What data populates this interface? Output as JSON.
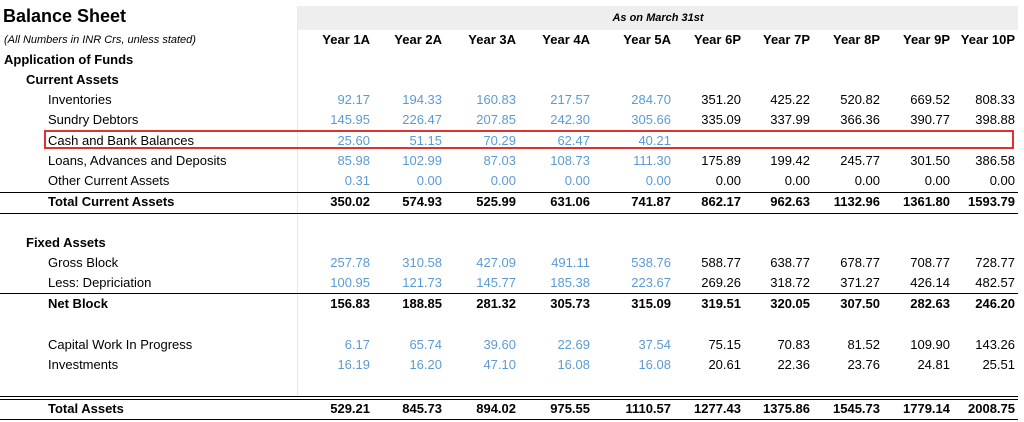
{
  "title": "Balance Sheet",
  "subtitle": "(All Numbers in INR Crs, unless stated)",
  "as_on": "As on March 31st",
  "years": [
    "Year 1A",
    "Year 2A",
    "Year 3A",
    "Year 4A",
    "Year 5A",
    "Year 6P",
    "Year 7P",
    "Year 8P",
    "Year 9P",
    "Year 10P"
  ],
  "section_application": "Application of Funds",
  "section_current_assets": "Current Assets",
  "section_fixed_assets": "Fixed Assets",
  "rows": {
    "inventories": {
      "label": "Inventories",
      "values": [
        "92.17",
        "194.33",
        "160.83",
        "217.57",
        "284.70",
        "351.20",
        "425.22",
        "520.82",
        "669.52",
        "808.33"
      ]
    },
    "sundry_debtors": {
      "label": "Sundry Debtors",
      "values": [
        "145.95",
        "226.47",
        "207.85",
        "242.30",
        "305.66",
        "335.09",
        "337.99",
        "366.36",
        "390.77",
        "398.88"
      ]
    },
    "cash_bank": {
      "label": "Cash and Bank Balances",
      "values": [
        "25.60",
        "51.15",
        "70.29",
        "62.47",
        "40.21",
        "",
        "",
        "",
        "",
        ""
      ]
    },
    "loans": {
      "label": "Loans, Advances and Deposits",
      "values": [
        "85.98",
        "102.99",
        "87.03",
        "108.73",
        "111.30",
        "175.89",
        "199.42",
        "245.77",
        "301.50",
        "386.58"
      ]
    },
    "other_current": {
      "label": "Other Current Assets",
      "values": [
        "0.31",
        "0.00",
        "0.00",
        "0.00",
        "0.00",
        "0.00",
        "0.00",
        "0.00",
        "0.00",
        "0.00"
      ]
    },
    "total_current": {
      "label": "Total Current Assets",
      "values": [
        "350.02",
        "574.93",
        "525.99",
        "631.06",
        "741.87",
        "862.17",
        "962.63",
        "1132.96",
        "1361.80",
        "1593.79"
      ]
    },
    "gross_block": {
      "label": "Gross Block",
      "values": [
        "257.78",
        "310.58",
        "427.09",
        "491.11",
        "538.76",
        "588.77",
        "638.77",
        "678.77",
        "708.77",
        "728.77"
      ]
    },
    "depreciation": {
      "label": "Less: Depriciation",
      "values": [
        "100.95",
        "121.73",
        "145.77",
        "185.38",
        "223.67",
        "269.26",
        "318.72",
        "371.27",
        "426.14",
        "482.57"
      ]
    },
    "net_block": {
      "label": "Net Block",
      "values": [
        "156.83",
        "188.85",
        "281.32",
        "305.73",
        "315.09",
        "319.51",
        "320.05",
        "307.50",
        "282.63",
        "246.20"
      ]
    },
    "cwip": {
      "label": "Capital Work In Progress",
      "values": [
        "6.17",
        "65.74",
        "39.60",
        "22.69",
        "37.54",
        "75.15",
        "70.83",
        "81.52",
        "109.90",
        "143.26"
      ]
    },
    "investments": {
      "label": "Investments",
      "values": [
        "16.19",
        "16.20",
        "47.10",
        "16.08",
        "16.08",
        "20.61",
        "22.36",
        "23.76",
        "24.81",
        "25.51"
      ]
    },
    "total_assets": {
      "label": "Total Assets",
      "values": [
        "529.21",
        "845.73",
        "894.02",
        "975.55",
        "1110.57",
        "1277.43",
        "1375.86",
        "1545.73",
        "1779.14",
        "2008.75"
      ]
    }
  }
}
